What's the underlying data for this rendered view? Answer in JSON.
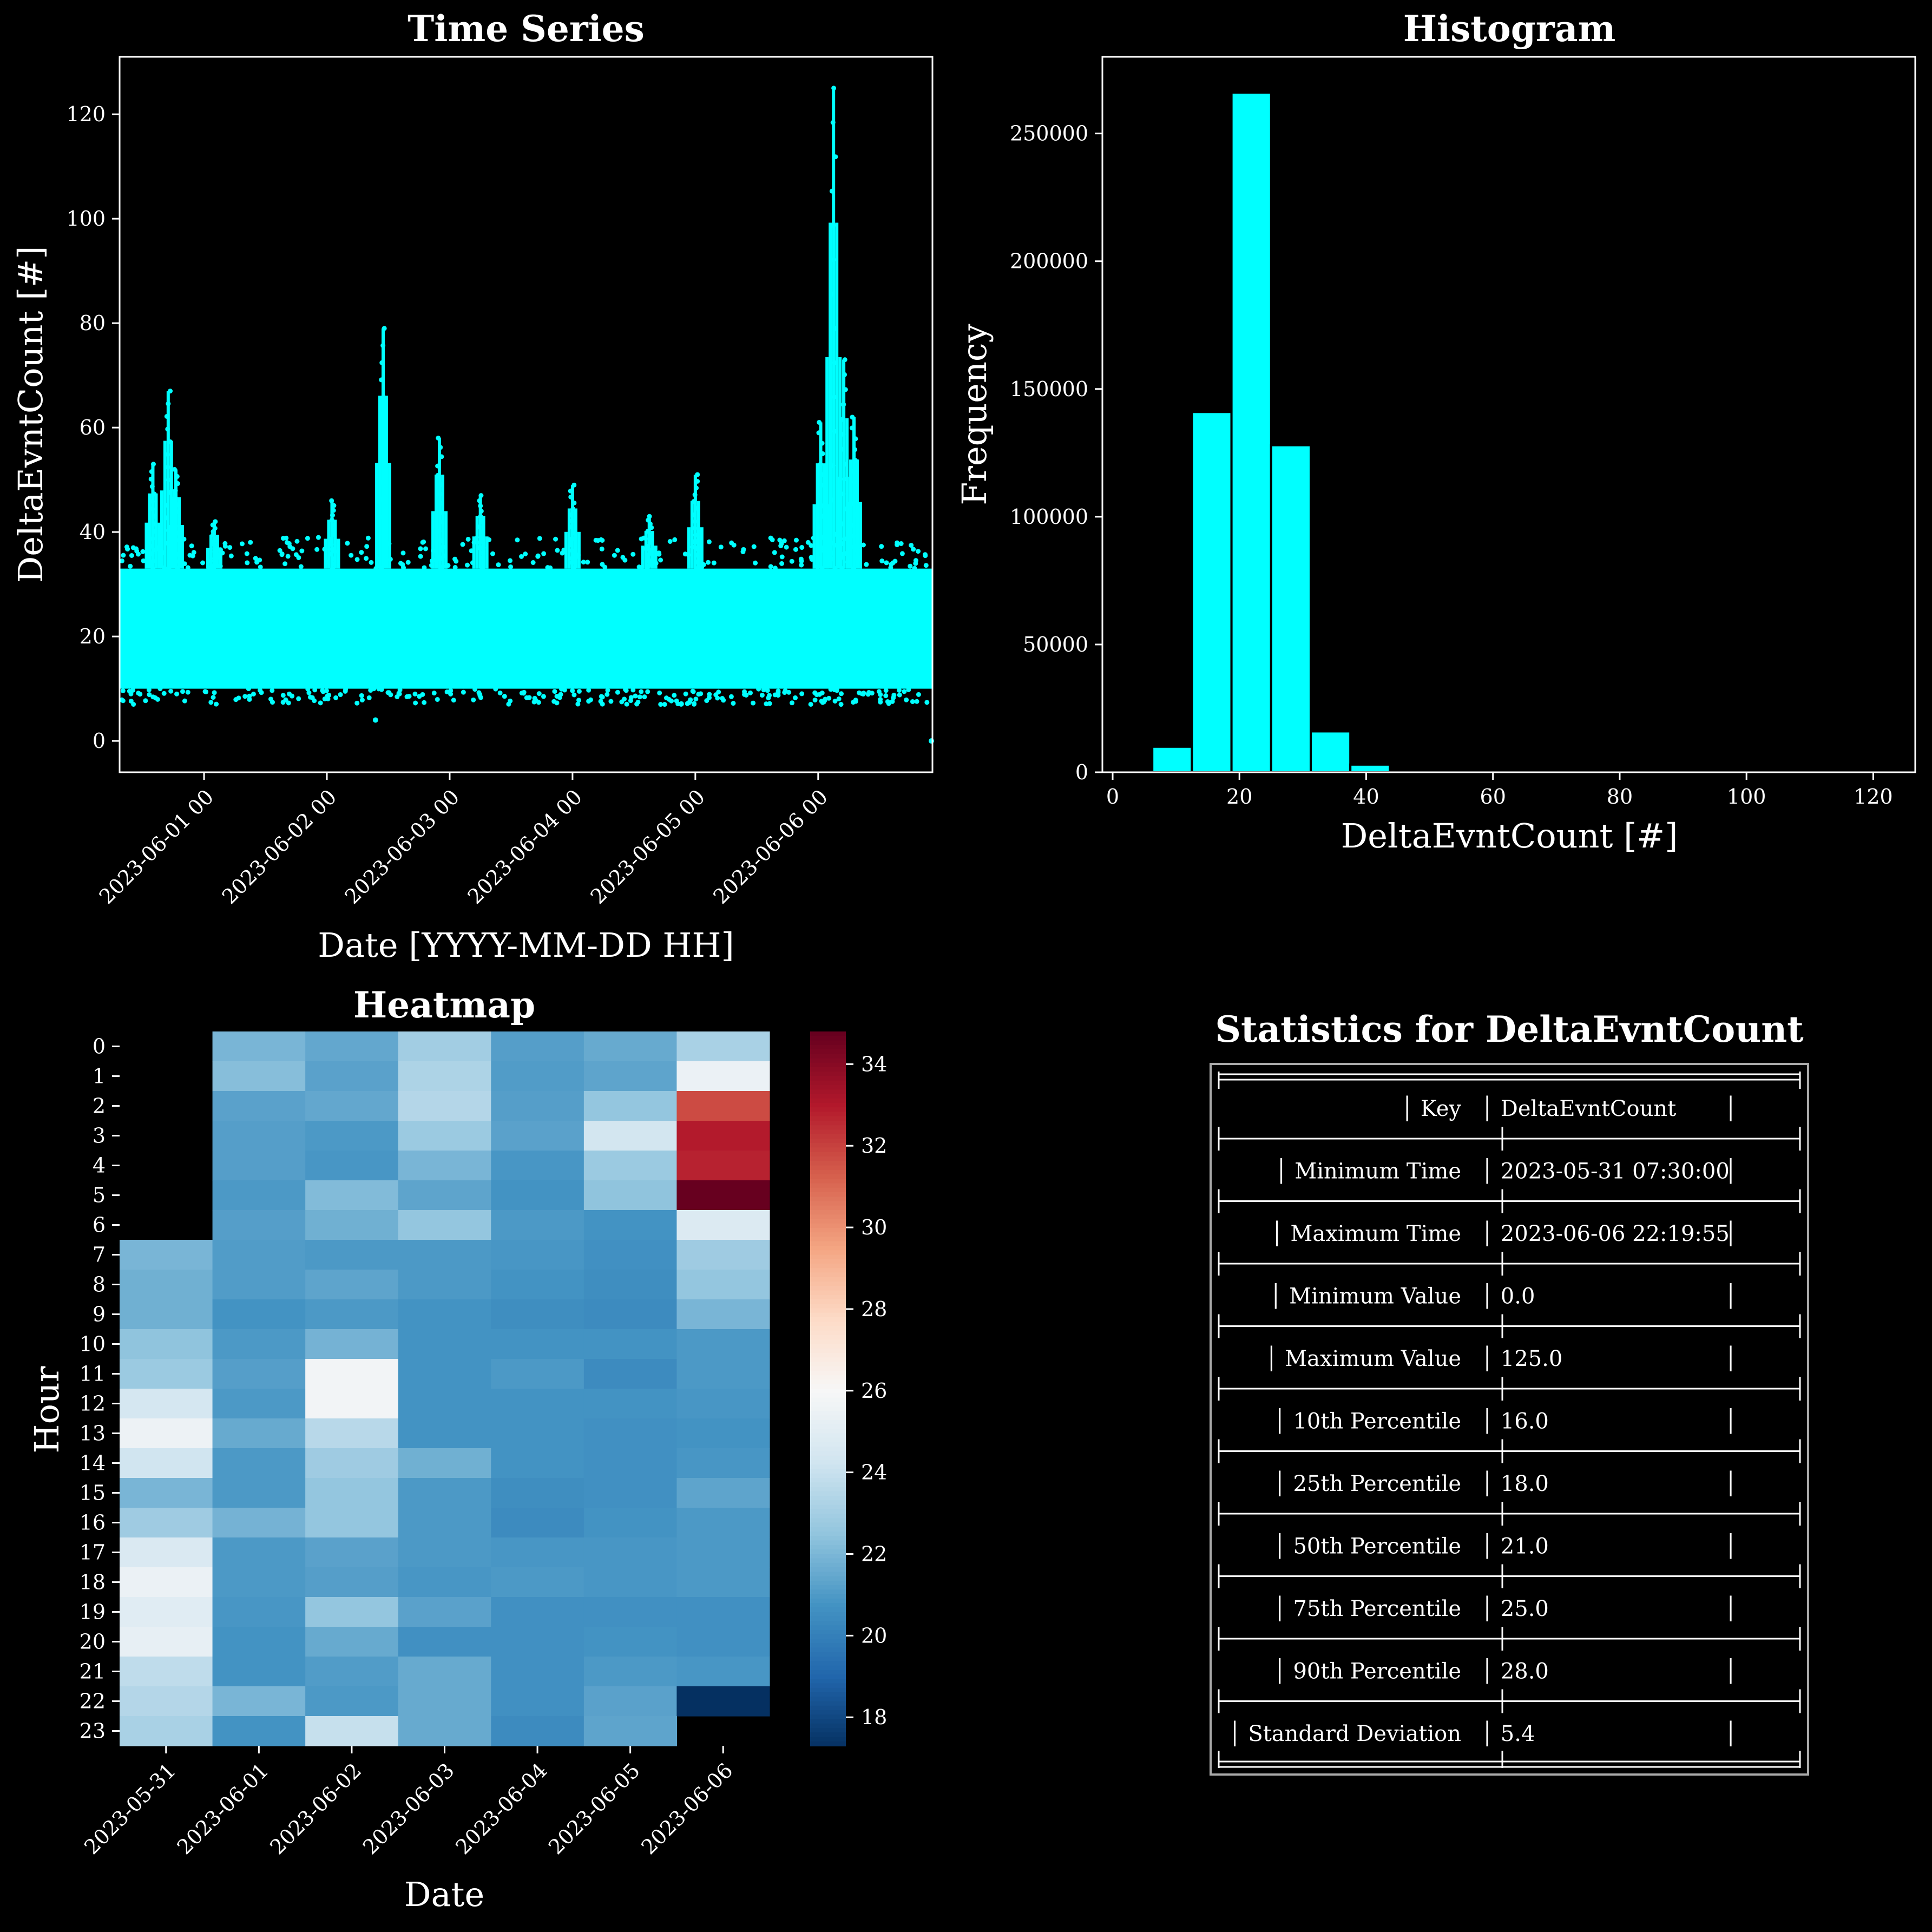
{
  "colors": {
    "background": "#000000",
    "foreground": "#ffffff",
    "accent": "#00ffff",
    "colormap": "RdBu_r"
  },
  "chart_data": [
    {
      "type": "scatter",
      "title": "Time Series",
      "xlabel": "Date [YYYY-MM-DD HH]",
      "ylabel": "DeltaEvntCount [#]",
      "x_range": [
        "2023-05-31 07:30:00",
        "2023-06-06 22:19:55"
      ],
      "ylim": [
        -6,
        131
      ],
      "xticks": [
        "2023-06-01 00",
        "2023-06-02 00",
        "2023-06-03 00",
        "2023-06-04 00",
        "2023-06-05 00",
        "2023-06-06 00"
      ],
      "yticks": [
        0,
        20,
        40,
        60,
        80,
        100,
        120
      ],
      "color": "#00ffff",
      "grid": false,
      "band": {
        "low": 10,
        "high": 33,
        "min_typical": 7,
        "max_typical": 39
      },
      "peaks": [
        {
          "x": "2023-05-31 14:00",
          "y": 53
        },
        {
          "x": "2023-05-31 17:00",
          "y": 67
        },
        {
          "x": "2023-05-31 18:30",
          "y": 52
        },
        {
          "x": "2023-06-01 02:00",
          "y": 42
        },
        {
          "x": "2023-06-02 01:00",
          "y": 46
        },
        {
          "x": "2023-06-02 11:00",
          "y": 79
        },
        {
          "x": "2023-06-02 22:00",
          "y": 58
        },
        {
          "x": "2023-06-03 06:00",
          "y": 47
        },
        {
          "x": "2023-06-04 00:00",
          "y": 49
        },
        {
          "x": "2023-06-04 15:00",
          "y": 43
        },
        {
          "x": "2023-06-05 00:00",
          "y": 51
        },
        {
          "x": "2023-06-06 00:30",
          "y": 61
        },
        {
          "x": "2023-06-06 03:00",
          "y": 125
        },
        {
          "x": "2023-06-06 05:00",
          "y": 73
        },
        {
          "x": "2023-06-06 07:00",
          "y": 62
        }
      ],
      "low_points": [
        {
          "x": "2023-06-02 09:30",
          "y": 4
        },
        {
          "x": "2023-06-06 22:19",
          "y": 0
        }
      ]
    },
    {
      "type": "bar",
      "title": "Histogram",
      "xlabel": "DeltaEvntCount [#]",
      "ylabel": "Frequency",
      "xlim": [
        0,
        125
      ],
      "ylim": [
        0,
        280000
      ],
      "xticks": [
        0,
        20,
        40,
        60,
        80,
        100,
        120
      ],
      "yticks": [
        0,
        50000,
        100000,
        150000,
        200000,
        250000
      ],
      "bin_width": 6.25,
      "bins": [
        {
          "x0": 6.25,
          "value": 10000
        },
        {
          "x0": 12.5,
          "value": 141000
        },
        {
          "x0": 18.75,
          "value": 266000
        },
        {
          "x0": 25.0,
          "value": 128000
        },
        {
          "x0": 31.25,
          "value": 16000
        },
        {
          "x0": 37.5,
          "value": 3000
        },
        {
          "x0": 43.75,
          "value": 400
        },
        {
          "x0": 50.0,
          "value": 80
        },
        {
          "x0": 56.25,
          "value": 30
        },
        {
          "x0": 62.5,
          "value": 20
        },
        {
          "x0": 68.75,
          "value": 20
        },
        {
          "x0": 75.0,
          "value": 15
        },
        {
          "x0": 81.25,
          "value": 10
        },
        {
          "x0": 87.5,
          "value": 5
        },
        {
          "x0": 93.75,
          "value": 5
        },
        {
          "x0": 100.0,
          "value": 3
        },
        {
          "x0": 106.25,
          "value": 2
        },
        {
          "x0": 112.5,
          "value": 2
        },
        {
          "x0": 118.75,
          "value": 2
        }
      ],
      "color": "#00ffff",
      "grid": false
    },
    {
      "type": "heatmap",
      "title": "Heatmap",
      "xlabel": "Date",
      "ylabel": "Hour",
      "x_categories": [
        "2023-05-31",
        "2023-06-01",
        "2023-06-02",
        "2023-06-03",
        "2023-06-04",
        "2023-06-05",
        "2023-06-06"
      ],
      "y_categories": [
        "0",
        "1",
        "2",
        "3",
        "4",
        "5",
        "6",
        "7",
        "8",
        "9",
        "10",
        "11",
        "12",
        "13",
        "14",
        "15",
        "16",
        "17",
        "18",
        "19",
        "20",
        "21",
        "22",
        "23"
      ],
      "colorbar_ticks": [
        18,
        20,
        22,
        24,
        26,
        28,
        30,
        32,
        34
      ],
      "vmin": 17.3,
      "vmax": 34.8,
      "values": [
        [
          null,
          22.0,
          21.5,
          23.0,
          21.2,
          21.6,
          23.2
        ],
        [
          null,
          22.3,
          21.3,
          23.3,
          21.1,
          21.4,
          25.5
        ],
        [
          null,
          21.3,
          21.5,
          23.5,
          21.2,
          22.6,
          31.8
        ],
        [
          null,
          21.2,
          21.0,
          22.8,
          21.3,
          24.4,
          33.0
        ],
        [
          null,
          21.2,
          20.9,
          22.0,
          20.9,
          22.8,
          32.8
        ],
        [
          null,
          21.0,
          22.2,
          21.4,
          20.8,
          22.5,
          34.8
        ],
        [
          null,
          21.2,
          21.8,
          22.6,
          21.0,
          20.8,
          24.8
        ],
        [
          22.0,
          21.1,
          21.0,
          21.0,
          20.9,
          20.7,
          22.9
        ],
        [
          21.8,
          21.1,
          21.4,
          21.0,
          20.8,
          20.6,
          22.6
        ],
        [
          21.8,
          20.8,
          21.0,
          20.8,
          20.6,
          20.5,
          22.0
        ],
        [
          22.5,
          21.0,
          21.9,
          20.8,
          20.8,
          20.8,
          21.0
        ],
        [
          22.8,
          21.2,
          25.8,
          20.8,
          21.0,
          20.5,
          21.0
        ],
        [
          24.5,
          21.0,
          25.8,
          20.8,
          20.8,
          20.8,
          20.9
        ],
        [
          25.6,
          21.6,
          23.6,
          20.8,
          20.8,
          20.7,
          20.8
        ],
        [
          24.3,
          21.0,
          22.9,
          21.8,
          20.8,
          20.7,
          20.9
        ],
        [
          22.0,
          21.0,
          22.6,
          21.0,
          20.6,
          20.7,
          21.4
        ],
        [
          22.9,
          21.9,
          22.6,
          21.0,
          20.5,
          20.8,
          21.0
        ],
        [
          24.7,
          21.0,
          21.3,
          21.0,
          20.9,
          20.9,
          21.0
        ],
        [
          25.5,
          21.0,
          21.2,
          20.9,
          21.0,
          20.9,
          21.0
        ],
        [
          25.0,
          20.9,
          22.6,
          21.3,
          20.7,
          20.7,
          20.7
        ],
        [
          25.3,
          20.8,
          21.6,
          20.7,
          20.7,
          20.8,
          20.7
        ],
        [
          23.8,
          20.8,
          21.1,
          21.6,
          20.7,
          21.0,
          20.9
        ],
        [
          23.5,
          22.0,
          21.0,
          21.6,
          20.7,
          21.3,
          17.3
        ],
        [
          23.2,
          20.8,
          24.0,
          21.6,
          20.5,
          21.4,
          null
        ]
      ],
      "colormap": "RdBu_r"
    },
    {
      "type": "table",
      "title": "Statistics for DeltaEvntCount",
      "rows": [
        [
          "Key",
          "DeltaEvntCount"
        ],
        [
          "Minimum Time",
          "2023-05-31 07:30:00"
        ],
        [
          "Maximum Time",
          "2023-06-06 22:19:55"
        ],
        [
          "Minimum Value",
          "0.0"
        ],
        [
          "Maximum Value",
          "125.0"
        ],
        [
          "10th Percentile",
          "16.0"
        ],
        [
          "25th Percentile",
          "18.0"
        ],
        [
          "50th Percentile",
          "21.0"
        ],
        [
          "75th Percentile",
          "25.0"
        ],
        [
          "90th Percentile",
          "28.0"
        ],
        [
          "Standard Deviation",
          "5.4"
        ]
      ]
    }
  ]
}
